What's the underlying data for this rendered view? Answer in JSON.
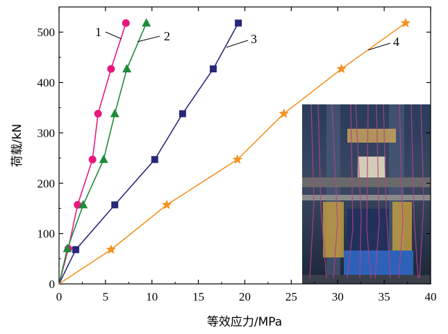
{
  "chart_data": {
    "type": "line",
    "title": "",
    "xlabel": "等效应力/MPa",
    "ylabel": "荷载/kN",
    "xlim": [
      0,
      40
    ],
    "ylim": [
      0,
      550
    ],
    "xticks": [
      "0",
      "5",
      "10",
      "15",
      "20",
      "25",
      "30",
      "35",
      "40"
    ],
    "yticks": [
      "0",
      "100",
      "200",
      "300",
      "400",
      "500"
    ],
    "grid": false,
    "inset": "photo of test specimen in loading frame (bottom-right)",
    "series": [
      {
        "name": "1",
        "color": "#e8177f",
        "marker": "circle",
        "points": [
          [
            0,
            0
          ],
          [
            1,
            70
          ],
          [
            2.0,
            157
          ],
          [
            3.6,
            247
          ],
          [
            4.2,
            338
          ],
          [
            5.6,
            427
          ],
          [
            7.2,
            518
          ]
        ]
      },
      {
        "name": "2",
        "color": "#1f8a3a",
        "marker": "triangle",
        "points": [
          [
            0,
            0
          ],
          [
            0.9,
            70
          ],
          [
            2.6,
            157
          ],
          [
            4.8,
            247
          ],
          [
            6.0,
            338
          ],
          [
            7.3,
            427
          ],
          [
            9.4,
            518
          ]
        ]
      },
      {
        "name": "3",
        "color": "#27287a",
        "marker": "square",
        "points": [
          [
            0,
            0
          ],
          [
            1.8,
            68
          ],
          [
            6.0,
            157
          ],
          [
            10.3,
            247
          ],
          [
            13.3,
            338
          ],
          [
            16.6,
            427
          ],
          [
            19.3,
            518
          ]
        ]
      },
      {
        "name": "4",
        "color": "#f39323",
        "marker": "star",
        "points": [
          [
            0,
            0
          ],
          [
            5.6,
            68
          ],
          [
            11.6,
            157
          ],
          [
            19.2,
            247
          ],
          [
            24.2,
            338
          ],
          [
            30.4,
            427
          ],
          [
            37.3,
            518
          ]
        ]
      }
    ]
  }
}
